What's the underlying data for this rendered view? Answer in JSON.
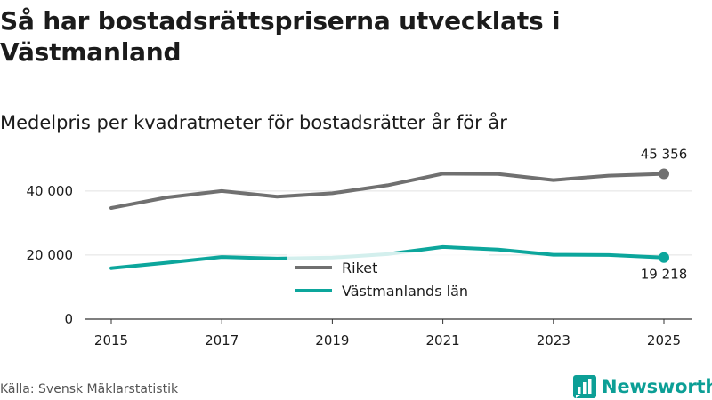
{
  "title": "Så har bostadsrättspriserna utvecklats i Västmanland",
  "subtitle": "Medelpris per kvadratmeter för bostadsrätter år för år",
  "source": "Källa: Svensk Mäklarstatistik",
  "brand": {
    "name": "Newsworthy",
    "icon": "bar-chart-logo-icon",
    "color": "#0c9f96"
  },
  "chart_data": {
    "type": "line",
    "x": [
      2015,
      2016,
      2017,
      2018,
      2019,
      2020,
      2021,
      2022,
      2023,
      2024,
      2025
    ],
    "x_tick_values": [
      2015,
      2017,
      2019,
      2021,
      2023,
      2025
    ],
    "x_tick_labels": [
      "2015",
      "2017",
      "2019",
      "2021",
      "2023",
      "2025"
    ],
    "y_tick_values": [
      0,
      20000,
      40000
    ],
    "y_tick_labels": [
      "0",
      "20 000",
      "40 000"
    ],
    "ylim": [
      0,
      58000
    ],
    "xlabel": "",
    "ylabel": "",
    "grid": true,
    "legend_position": "center",
    "series": [
      {
        "name": "Riket",
        "color": "#707070",
        "values": [
          34700,
          38000,
          40000,
          38200,
          39300,
          41800,
          45400,
          45300,
          43400,
          44800,
          45356
        ],
        "end_label": "45 356"
      },
      {
        "name": "Västmanlands län",
        "color": "#0ca69c",
        "values": [
          15900,
          17600,
          19400,
          18900,
          19200,
          20300,
          22500,
          21700,
          20100,
          20000,
          19218
        ],
        "end_label": "19 218"
      }
    ]
  }
}
